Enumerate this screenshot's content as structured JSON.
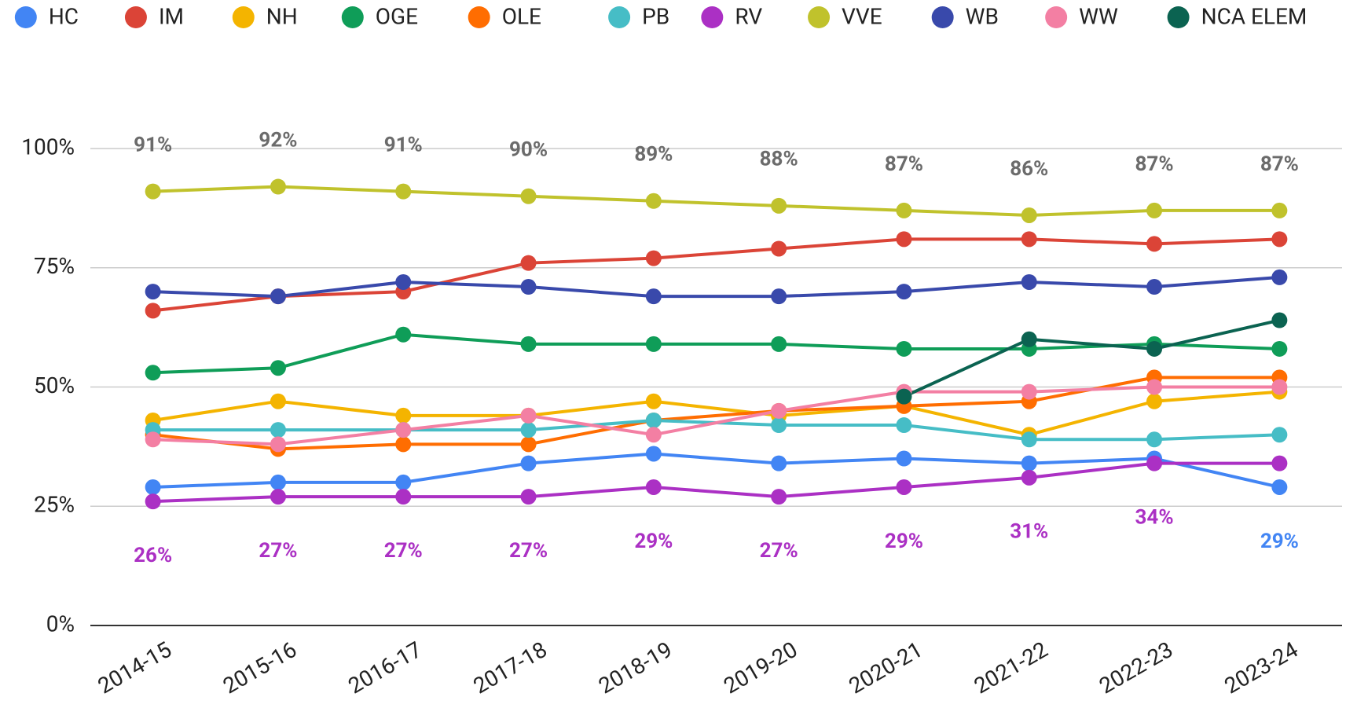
{
  "chart_data": {
    "type": "line",
    "categories": [
      "2014-15",
      "2015-16",
      "2016-17",
      "2017-18",
      "2018-19",
      "2019-20",
      "2020-21",
      "2021-22",
      "2022-23",
      "2023-24"
    ],
    "ylim": [
      0,
      100
    ],
    "yticks": [
      {
        "value": 0,
        "label": "0%"
      },
      {
        "value": 25,
        "label": "25%"
      },
      {
        "value": 50,
        "label": "50%"
      },
      {
        "value": 75,
        "label": "75%"
      },
      {
        "value": 100,
        "label": "100%"
      }
    ],
    "grid": true,
    "legend": "top",
    "series": [
      {
        "name": "HC",
        "color": "#4285f4",
        "values": [
          29,
          30,
          30,
          34,
          36,
          34,
          35,
          34,
          35,
          29
        ],
        "value_labels": [
          null,
          null,
          null,
          null,
          null,
          null,
          null,
          null,
          null,
          "29%"
        ]
      },
      {
        "name": "IM",
        "color": "#db4437",
        "values": [
          66,
          69,
          70,
          76,
          77,
          79,
          81,
          81,
          80,
          81
        ]
      },
      {
        "name": "NH",
        "color": "#f4b400",
        "values": [
          43,
          47,
          44,
          44,
          47,
          44,
          46,
          40,
          47,
          49
        ]
      },
      {
        "name": "OGE",
        "color": "#0f9d58",
        "values": [
          53,
          54,
          61,
          59,
          59,
          59,
          58,
          58,
          59,
          58
        ]
      },
      {
        "name": "OLE",
        "color": "#ff6d01",
        "values": [
          40,
          37,
          38,
          38,
          43,
          45,
          46,
          47,
          52,
          52
        ]
      },
      {
        "name": "PB",
        "color": "#46bdc6",
        "values": [
          41,
          41,
          41,
          41,
          43,
          42,
          42,
          39,
          39,
          40
        ]
      },
      {
        "name": "RV",
        "color": "#ab30c4",
        "values": [
          26,
          27,
          27,
          27,
          29,
          27,
          29,
          31,
          34,
          34
        ],
        "value_labels": [
          "26%",
          "27%",
          "27%",
          "27%",
          "29%",
          "27%",
          "29%",
          "31%",
          "34%",
          null
        ]
      },
      {
        "name": "VVE",
        "color": "#c0c22c",
        "label_color": "#6b6b6b",
        "values": [
          91,
          92,
          91,
          90,
          89,
          88,
          87,
          86,
          87,
          87
        ],
        "value_labels": [
          "91%",
          "92%",
          "91%",
          "90%",
          "89%",
          "88%",
          "87%",
          "86%",
          "87%",
          "87%"
        ]
      },
      {
        "name": "WB",
        "color": "#3949ab",
        "values": [
          70,
          69,
          72,
          71,
          69,
          69,
          70,
          72,
          71,
          73
        ]
      },
      {
        "name": "WW",
        "color": "#f37fa3",
        "values": [
          39,
          38,
          41,
          44,
          40,
          45,
          49,
          49,
          50,
          50
        ]
      },
      {
        "name": "NCA ELEM",
        "color": "#0b6351",
        "values": [
          null,
          null,
          null,
          null,
          null,
          null,
          48,
          60,
          58,
          64
        ]
      }
    ]
  }
}
